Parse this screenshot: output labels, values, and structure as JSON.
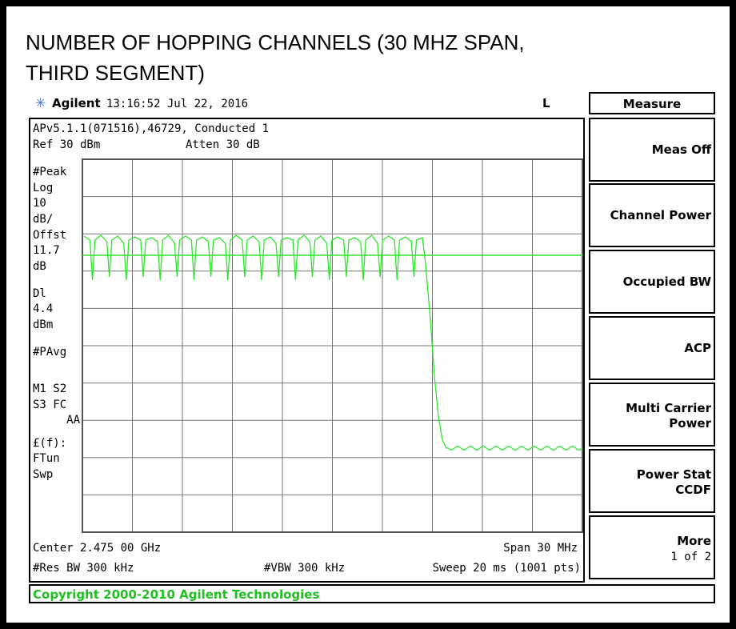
{
  "header": {
    "title": "NUMBER OF HOPPING CHANNELS (30 MHZ SPAN, THIRD SEGMENT)"
  },
  "status": {
    "brand": "Agilent",
    "time": "13:16:52  Jul 22, 2016",
    "flag": "L"
  },
  "panel": {
    "line1": "APv5.1.1(071516),46729, Conducted 1",
    "ref": "Ref 30 dBm",
    "atten": "Atten 30 dB",
    "left_labels": [
      "#Peak",
      "Log",
      "10",
      "dB/",
      "Offst",
      "11.7",
      "dB",
      "Dl",
      "4.4",
      "dBm",
      "#PAvg",
      "M1  S2",
      "S3  FC",
      "AA",
      "£(f):",
      "FTun",
      "Swp"
    ],
    "center": "Center 2.475 00 GHz",
    "span": "Span 30 MHz",
    "rbw": "#Res BW 300 kHz",
    "vbw": "#VBW 300 kHz",
    "sweep": "Sweep 20 ms (1001 pts)"
  },
  "menu": {
    "title": "Measure",
    "keys": [
      [
        "Meas Off"
      ],
      [
        "Channel Power"
      ],
      [
        "Occupied BW"
      ],
      [
        "ACP"
      ],
      [
        "Multi Carrier",
        "Power"
      ],
      [
        "Power Stat",
        "CCDF"
      ],
      [
        "More",
        "1 of 2"
      ]
    ]
  },
  "copyright": "Copyright 2000-2010 Agilent Technologies"
}
